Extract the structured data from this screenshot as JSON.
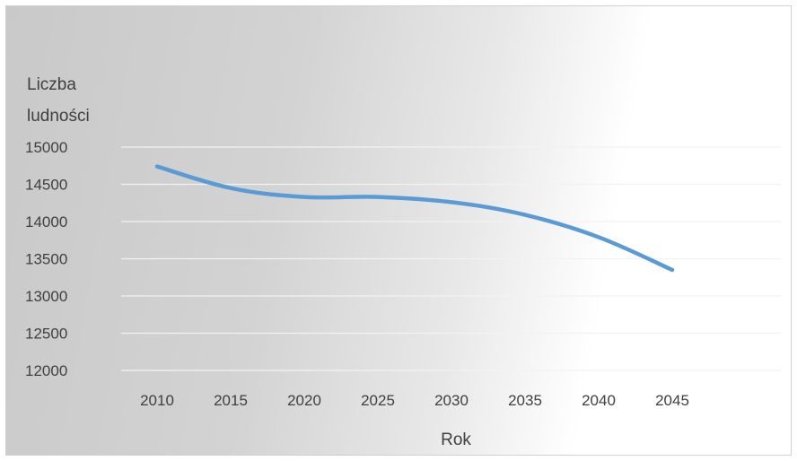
{
  "chart_data": {
    "type": "line",
    "title": "",
    "xlabel": "Rok",
    "ylabel": "Liczba ludności",
    "ylabel_lines": [
      "Liczba",
      "ludności"
    ],
    "categories": [
      "2010",
      "2015",
      "2020",
      "2025",
      "2030",
      "2035",
      "2040",
      "2045"
    ],
    "series": [
      {
        "values": [
          14740,
          14450,
          14330,
          14330,
          14260,
          14090,
          13790,
          13350
        ]
      }
    ],
    "ylim": [
      12000,
      15000
    ],
    "yticks": [
      "12000",
      "12500",
      "13000",
      "13500",
      "14000",
      "14500",
      "15000"
    ],
    "grid": true,
    "legend": "none",
    "line_color": "#5b9bd5"
  }
}
